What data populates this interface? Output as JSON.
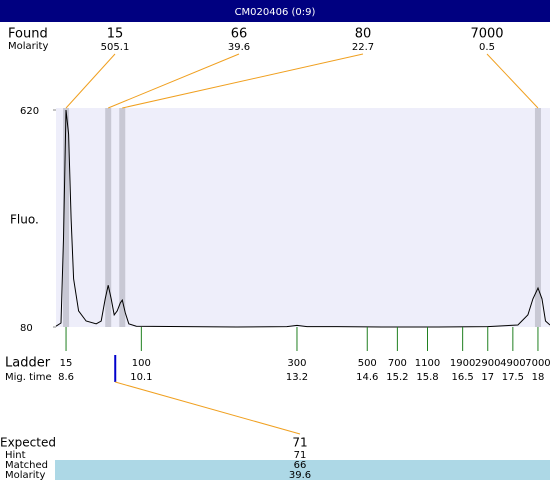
{
  "header": {
    "title": "CM020406 (0:9)"
  },
  "chart_data": {
    "type": "line",
    "ylabel": "Fluo.",
    "x": [
      8.4,
      8.5,
      8.55,
      8.6,
      8.65,
      8.7,
      8.75,
      8.85,
      9.0,
      9.2,
      9.3,
      9.38,
      9.44,
      9.5,
      9.56,
      9.62,
      9.68,
      9.72,
      9.78,
      9.85,
      10.0,
      11,
      12,
      13,
      13.2,
      13.4,
      14,
      15,
      16,
      17,
      17.6,
      17.8,
      17.9,
      18,
      18.08,
      18.15,
      18.24
    ],
    "series": [
      {
        "color": "#000000",
        "values": [
          82,
          90,
          300,
          620,
          560,
          350,
          200,
          120,
          95,
          88,
          95,
          150,
          184,
          150,
          110,
          120,
          140,
          147,
          115,
          88,
          82,
          81,
          80,
          81,
          84,
          81,
          81,
          80,
          80,
          81,
          85,
          110,
          150,
          177,
          150,
          95,
          85
        ]
      }
    ],
    "xlim": [
      8.4,
      18.24
    ],
    "ylim": [
      80,
      620
    ],
    "yticks": [
      80,
      620
    ]
  },
  "found": {
    "label": "Found",
    "molarity_label": "Molarity",
    "sizes": [
      15,
      66,
      80,
      7000
    ],
    "molarities": [
      505.1,
      39.6,
      22.7,
      0.5
    ],
    "times": [
      8.6,
      9.44,
      9.72,
      18
    ]
  },
  "ladder": {
    "label": "Ladder",
    "time_label": "Mig. time",
    "sizes": [
      15,
      100,
      300,
      500,
      700,
      1100,
      1900,
      2900,
      4900,
      7000
    ],
    "times": [
      8.6,
      10.1,
      13.2,
      14.6,
      15.2,
      15.8,
      16.5,
      17,
      17.5,
      18
    ]
  },
  "expected": {
    "label": "Expected",
    "value": 71,
    "time": 9.58,
    "hint_label": "Hint",
    "hint": 71,
    "matched_label": "Matched",
    "matched": 66,
    "molarity_label": "Molarity",
    "molarity": 39.6
  }
}
